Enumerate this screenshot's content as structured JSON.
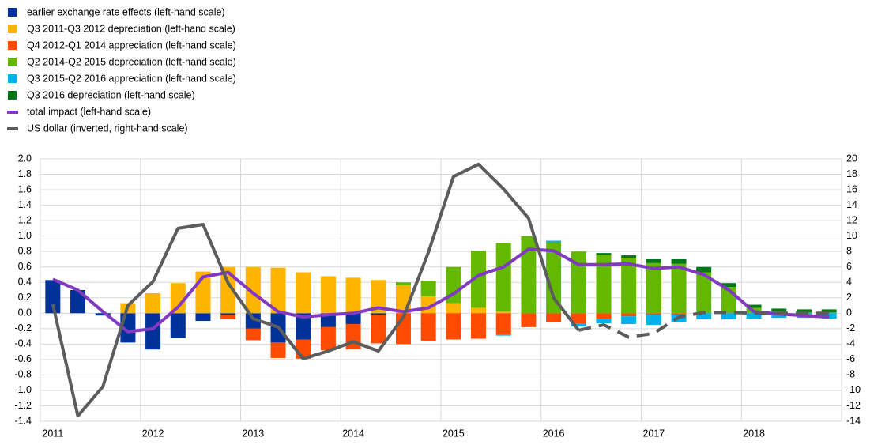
{
  "chart_data": {
    "type": "stacked_bar_line",
    "categories": [
      "2011",
      null,
      null,
      null,
      "2012",
      null,
      null,
      null,
      "2013",
      null,
      null,
      null,
      "2014",
      null,
      null,
      null,
      "2015",
      null,
      null,
      null,
      "2016",
      null,
      null,
      null,
      "2017",
      null,
      null,
      null,
      "2018",
      null,
      null,
      null
    ],
    "series": [
      {
        "name": "earlier exchange rate effects (left-hand scale)",
        "color": "#003299",
        "kind": "bar",
        "values": [
          0.43,
          0.3,
          -0.03,
          -0.38,
          -0.47,
          -0.32,
          -0.1,
          -0.02,
          -0.2,
          -0.38,
          -0.34,
          -0.18,
          -0.14,
          -0.02,
          0,
          0,
          0,
          0,
          0,
          0,
          0,
          0,
          0,
          0,
          0,
          0,
          0,
          0,
          0,
          0,
          0,
          0
        ]
      },
      {
        "name": "Q3 2011-Q3 2012 depreciation (left-hand scale)",
        "color": "#ffb400",
        "kind": "bar",
        "values": [
          0,
          0,
          0,
          0.13,
          0.26,
          0.39,
          0.54,
          0.6,
          0.6,
          0.59,
          0.53,
          0.48,
          0.46,
          0.43,
          0.36,
          0.22,
          0.13,
          0.07,
          0.02,
          0,
          0,
          0,
          0,
          0,
          0,
          0,
          0,
          0,
          0,
          0,
          0,
          0
        ]
      },
      {
        "name": "Q4 2012-Q1 2014 appreciation (left-hand scale)",
        "color": "#ff4b00",
        "kind": "bar",
        "values": [
          0,
          0,
          0,
          0,
          0,
          0,
          0,
          -0.06,
          -0.15,
          -0.2,
          -0.25,
          -0.3,
          -0.33,
          -0.37,
          -0.4,
          -0.36,
          -0.34,
          -0.33,
          -0.28,
          -0.18,
          -0.12,
          -0.13,
          -0.07,
          -0.04,
          -0.02,
          -0.02,
          0,
          0,
          0,
          0,
          0,
          0
        ]
      },
      {
        "name": "Q2 2014-Q2 2015 depreciation (left-hand scale)",
        "color": "#65b800",
        "kind": "bar",
        "values": [
          0,
          0,
          0,
          0,
          0,
          0,
          0,
          0,
          0,
          0,
          0,
          0,
          0,
          0,
          0.04,
          0.2,
          0.47,
          0.74,
          0.89,
          1.0,
          0.92,
          0.8,
          0.76,
          0.72,
          0.65,
          0.64,
          0.53,
          0.34,
          0.07,
          0.02,
          0.01,
          0.01
        ]
      },
      {
        "name": "Q3 2015-Q2 2016 appreciation (left-hand scale)",
        "color": "#00b1ea",
        "kind": "bar",
        "values": [
          0,
          0,
          0,
          0,
          0,
          0,
          0,
          0,
          0,
          0,
          0,
          0,
          0,
          0,
          0,
          0,
          0,
          0,
          -0.01,
          0,
          0.02,
          -0.04,
          -0.06,
          -0.1,
          -0.13,
          -0.1,
          -0.08,
          -0.08,
          -0.07,
          -0.06,
          -0.06,
          -0.07
        ]
      },
      {
        "name": "Q3 2016 depreciation (left-hand scale)",
        "color": "#007816",
        "kind": "bar",
        "values": [
          0,
          0,
          0,
          0,
          0,
          0,
          0,
          0,
          0,
          0,
          0,
          0,
          0,
          0,
          0,
          0,
          0,
          0,
          0,
          0,
          0,
          0,
          0.02,
          0.03,
          0.05,
          0.06,
          0.07,
          0.05,
          0.04,
          0.04,
          0.04,
          0.04
        ]
      },
      {
        "name": "total impact (left-hand scale)",
        "color": "#8139c1",
        "kind": "line",
        "values": [
          0.44,
          0.3,
          0.02,
          -0.24,
          -0.2,
          0.08,
          0.47,
          0.53,
          0.26,
          0.02,
          -0.05,
          -0.02,
          0.0,
          0.07,
          0.02,
          0.07,
          0.25,
          0.49,
          0.6,
          0.83,
          0.81,
          0.63,
          0.63,
          0.64,
          0.58,
          0.6,
          0.5,
          0.3,
          0.02,
          -0.01,
          -0.03,
          -0.05
        ]
      },
      {
        "name": "US dollar (inverted, right-hand scale)",
        "color": "#5c5c5c",
        "kind": "line",
        "axis": "y2",
        "dashed_from": 21,
        "values": [
          1.2,
          -13.3,
          -9.5,
          1,
          4.1,
          11,
          11.5,
          3.9,
          -0.7,
          -1.8,
          -5.9,
          -4.9,
          -3.7,
          -4.9,
          -0.5,
          7.9,
          17.7,
          19.3,
          16.1,
          12.3,
          2.0,
          -2.2,
          -1.5,
          -3.1,
          -2.6,
          -0.5,
          0.1,
          0.1,
          0,
          0,
          0,
          0
        ]
      }
    ],
    "ylim": [
      -1.4,
      2.0
    ],
    "yticks": [
      -1.4,
      -1.2,
      {
        "value": -1.0,
        "label": "-1.0"
      },
      -0.8,
      -0.6,
      -0.4,
      -0.2,
      {
        "value": 0,
        "label": "0.0"
      },
      0.2,
      0.4,
      0.6,
      0.8,
      {
        "value": 1.0,
        "label": "1.0"
      },
      1.2,
      1.4,
      1.6,
      1.8,
      {
        "value": 2.0,
        "label": "2.0"
      }
    ],
    "y2lim": [
      -14,
      20
    ],
    "y2ticks": [
      -14,
      -12,
      -10,
      -8,
      -6,
      -4,
      -2,
      0,
      2,
      4,
      6,
      8,
      10,
      12,
      14,
      16,
      18,
      20
    ],
    "grid": true,
    "legend": "top-left"
  }
}
